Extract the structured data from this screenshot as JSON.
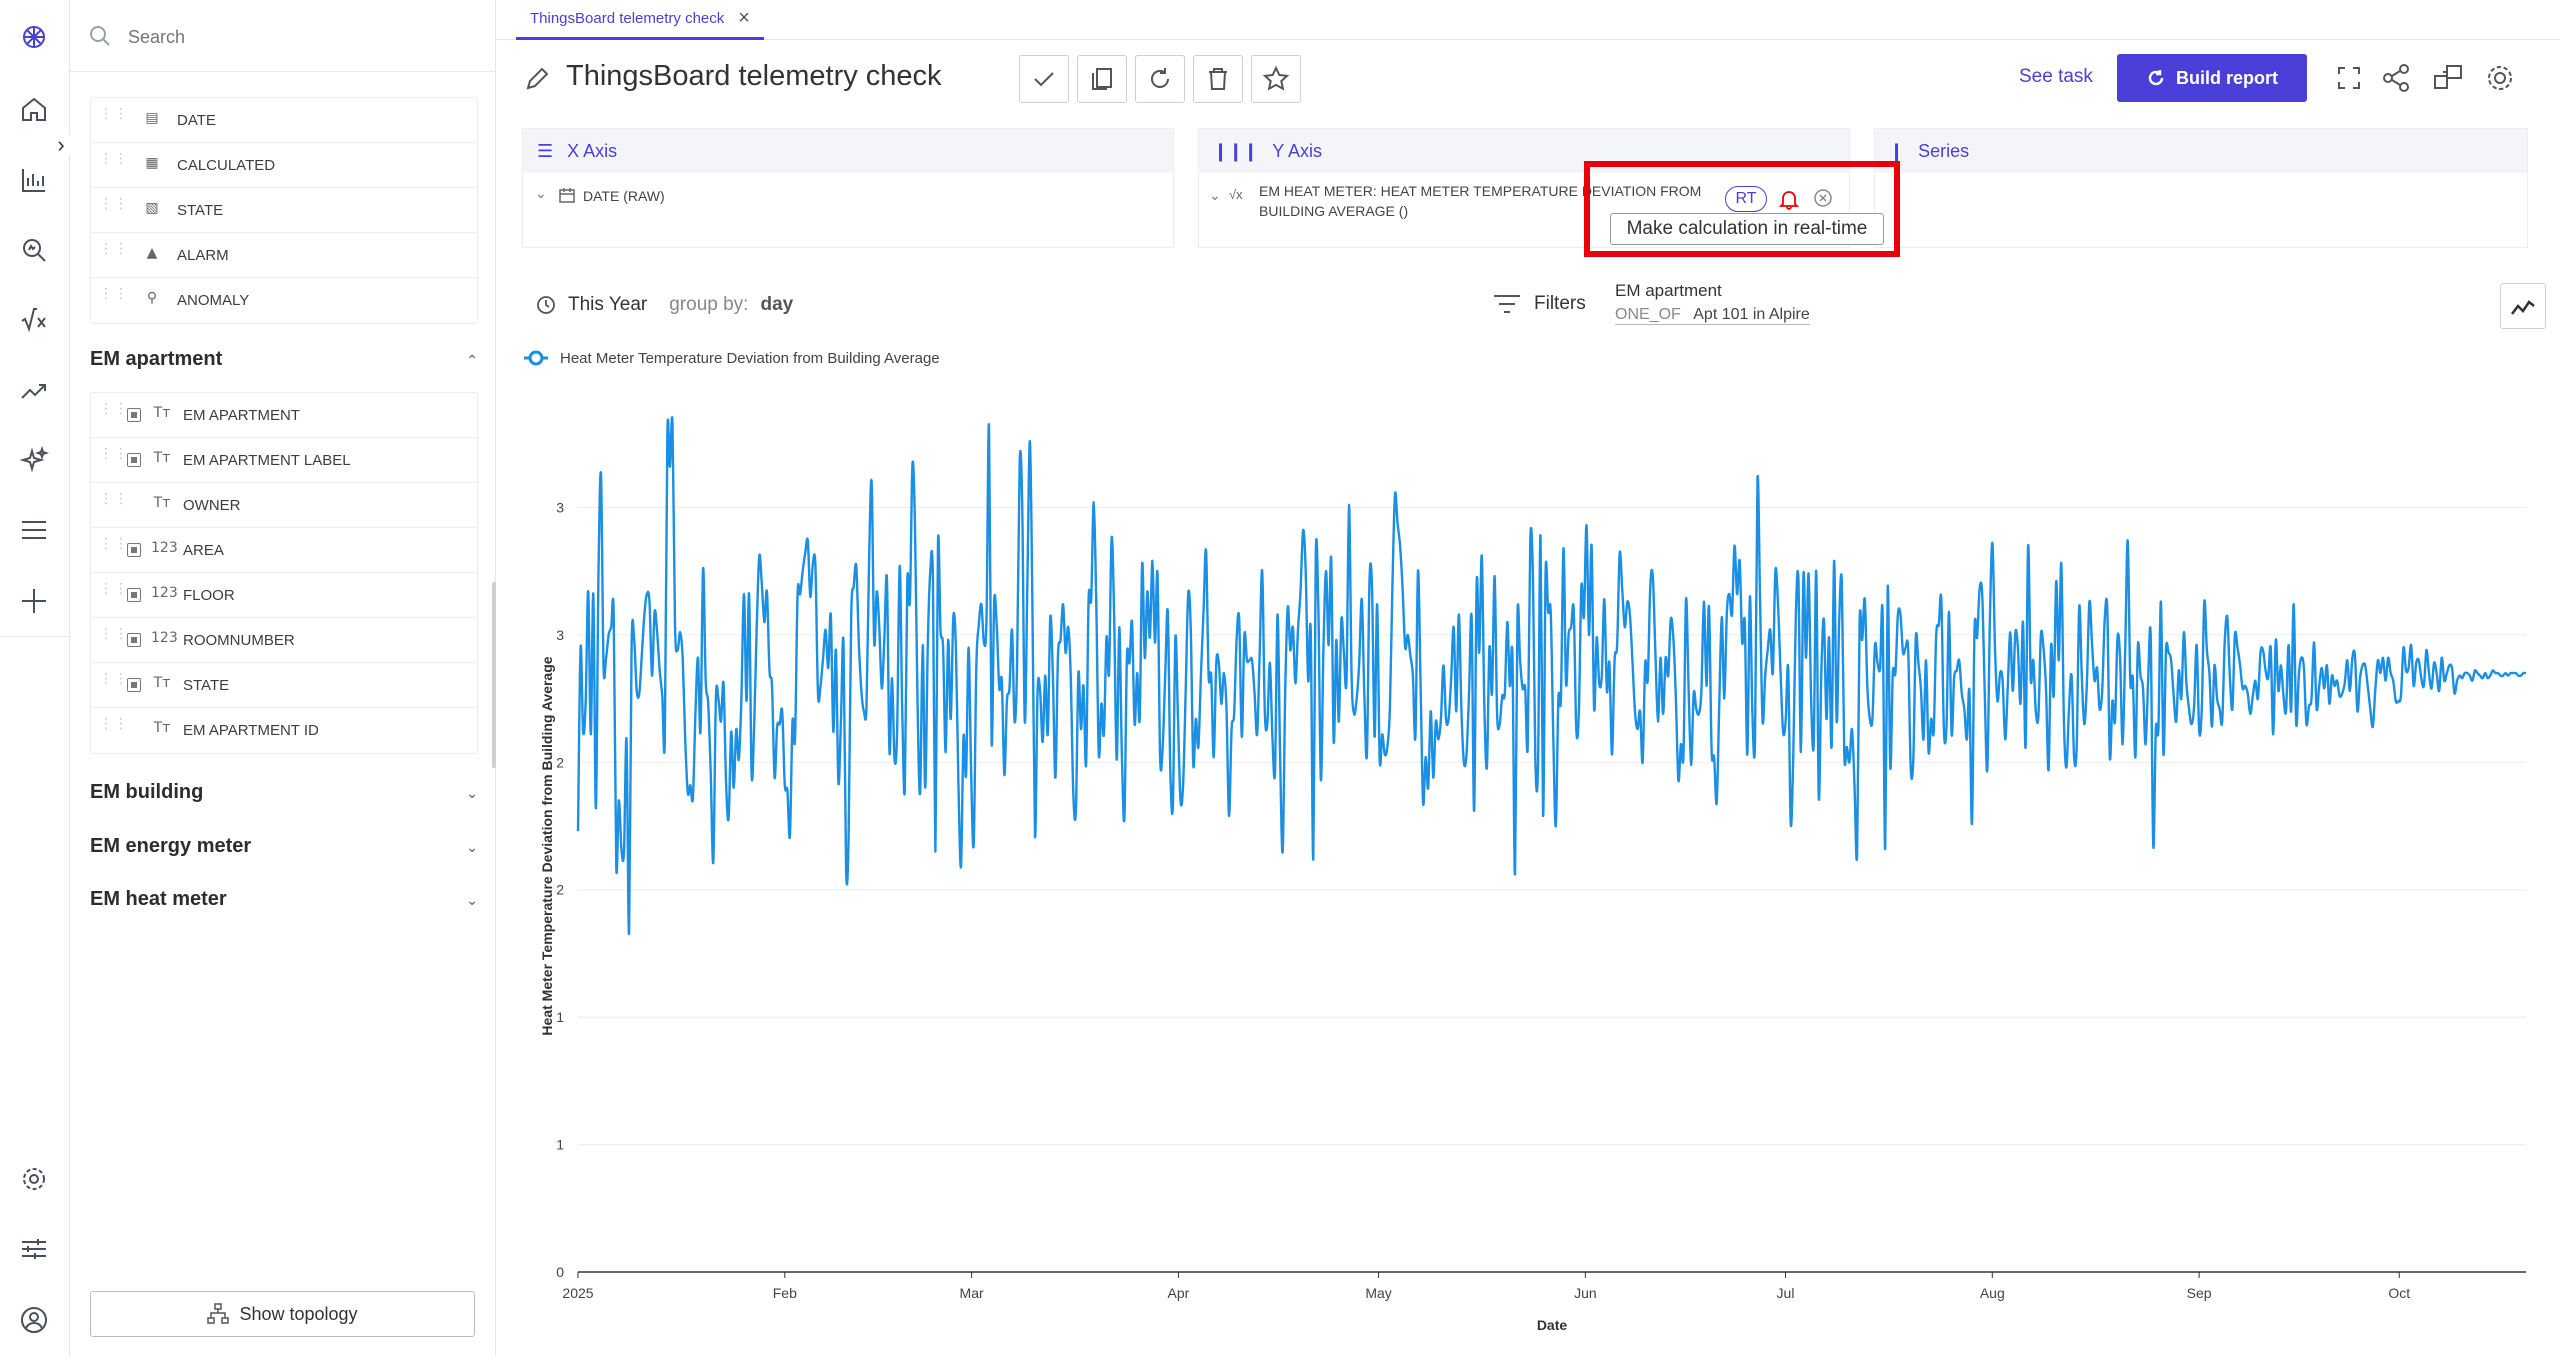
{
  "rail": {
    "icons": [
      "logo-icon",
      "home-icon",
      "reports-icon",
      "explore-icon",
      "formula-icon",
      "trend-icon",
      "ai-sparkle-icon",
      "menu-icon",
      "add-icon",
      "settings-icon",
      "sliders-icon",
      "user-icon"
    ]
  },
  "sidebar": {
    "search_placeholder": "Search",
    "top_fields": [
      {
        "label": "DATE",
        "icon": "calendar-icon"
      },
      {
        "label": "CALCULATED",
        "icon": "calculator-icon"
      },
      {
        "label": "STATE",
        "icon": "state-icon"
      },
      {
        "label": "ALARM",
        "icon": "alarm-icon"
      },
      {
        "label": "ANOMALY",
        "icon": "anomaly-icon"
      }
    ],
    "section_em_apartment": "EM apartment",
    "apartment_fields": [
      {
        "label": "EM APARTMENT",
        "type": "Tт",
        "checked": true
      },
      {
        "label": "EM APARTMENT LABEL",
        "type": "Tт",
        "checked": true
      },
      {
        "label": "OWNER",
        "type": "Tт",
        "checked": false
      },
      {
        "label": "AREA",
        "type": "123",
        "checked": true
      },
      {
        "label": "FLOOR",
        "type": "123",
        "checked": true
      },
      {
        "label": "ROOMNUMBER",
        "type": "123",
        "checked": true
      },
      {
        "label": "STATE",
        "type": "Tт",
        "checked": true
      },
      {
        "label": "EM APARTMENT ID",
        "type": "Tт",
        "checked": false
      }
    ],
    "section_em_building": "EM building",
    "section_em_energy_meter": "EM energy meter",
    "section_em_heat_meter": "EM heat meter",
    "show_topology": "Show topology"
  },
  "tab": {
    "label": "ThingsBoard telemetry check"
  },
  "header": {
    "title": "ThingsBoard telemetry check",
    "see_task": "See task",
    "build_report": "Build report"
  },
  "x_axis": {
    "title": "X Axis",
    "field": "DATE (RAW)"
  },
  "y_axis": {
    "title": "Y Axis",
    "field_line1": "EM HEAT METER: HEAT METER TEMPERATURE DEVIATION FROM",
    "field_line2": "BUILDING AVERAGE ()",
    "rt": "RT",
    "tooltip": "Make calculation in real-time"
  },
  "series_panel": {
    "title": "Series"
  },
  "period": {
    "label": "This Year",
    "group_by_label": "group by:",
    "group_by_value": "day"
  },
  "filters": {
    "label": "Filters",
    "entity": "EM apartment",
    "operator": "ONE_OF",
    "value": "Apt 101 in Alpire"
  },
  "colors": {
    "accent": "#4a3fd8",
    "line": "#1a8fe3",
    "highlight": "#e8000b"
  },
  "chart_data": {
    "type": "line",
    "legend": "Heat Meter Temperature Deviation from Building Average",
    "xlabel": "Date",
    "ylabel": "Heat Meter Temperature Deviation from Building Average",
    "x_ticks": [
      "2025",
      "Feb",
      "Mar",
      "Apr",
      "May",
      "Jun",
      "Jul",
      "Aug",
      "Sep",
      "Oct"
    ],
    "y_ticks": [
      "0",
      "1",
      "1",
      "2",
      "2",
      "3",
      "3"
    ],
    "y_tick_values": [
      0,
      0.5,
      1.0,
      1.5,
      2.0,
      2.5,
      3.0
    ],
    "ylim": [
      0,
      3.5
    ],
    "x_start": "2025-01-01",
    "x_end": "2025-10-20",
    "values": [
      1.73,
      2.45,
      2.12,
      2.24,
      2.67,
      2.11,
      2.66,
      1.82,
      2.72,
      3.13,
      2.38,
      2.41,
      2.5,
      2.53,
      2.58,
      1.59,
      1.85,
      1.66,
      1.65,
      2.09,
      1.33,
      2.46,
      2.48,
      2.28,
      2.27,
      2.42,
      2.58,
      2.66,
      2.63,
      2.34,
      2.59,
      2.51,
      2.36,
      2.26,
      2.09,
      3.29,
      3.16,
      3.33,
      2.54,
      2.44,
      2.51,
      2.41,
      2.09,
      1.88,
      1.91,
      1.86,
      2.19,
      2.41,
      2.12,
      2.76,
      2.32,
      2.23,
      1.95,
      1.61,
      2.25,
      2.25,
      2.16,
      2.31,
      1.92,
      1.78,
      2.12,
      1.9,
      2.13,
      2.01,
      2.25,
      2.66,
      2.24,
      2.66,
      1.95,
      2.15,
      2.53,
      2.81,
      2.7,
      2.55,
      2.67,
      2.36,
      2.3,
      1.94,
      2.14,
      2.15,
      2.2,
      1.91,
      1.89,
      1.71,
      2.16,
      2.09,
      2.66,
      2.66,
      2.75,
      2.82,
      2.87,
      2.65,
      2.78,
      2.77,
      2.27,
      2.3,
      2.41,
      2.52,
      2.37,
      2.58,
      2.12,
      2.44,
      1.92,
      2.17,
      2.47,
      1.58,
      1.71,
      2.57,
      2.69,
      2.77,
      2.47,
      2.28,
      2.2,
      2.22,
      2.79,
      3.1,
      2.47,
      2.67,
      2.53,
      2.29,
      2.49,
      2.72,
      2.04,
      2.33,
      2.01,
      2.12,
      2.77,
      2.21,
      1.89,
      2.71,
      2.63,
      3.17,
      2.92,
      2.22,
      1.88,
      2.46,
      1.9,
      2.46,
      2.75,
      2.73,
      1.65,
      2.86,
      2.52,
      2.45,
      2.04,
      2.48,
      2.17,
      2.57,
      2.45,
      1.92,
      1.59,
      2.1,
      1.95,
      2.45,
      1.95,
      1.68,
      2.37,
      2.54,
      2.62,
      2.47,
      2.56,
      3.32,
      2.08,
      2.63,
      2.54,
      2.29,
      2.32,
      1.95,
      2.24,
      2.29,
      2.52,
      2.16,
      2.39,
      3.18,
      3.01,
      2.16,
      2.69,
      3.26,
      2.62,
      1.71,
      2.28,
      2.28,
      2.08,
      2.34,
      2.11,
      2.57,
      2.34,
      1.94,
      2.42,
      2.48,
      2.62,
      2.43,
      2.53,
      2.34,
      1.88,
      1.81,
      2.35,
      2.13,
      2.3,
      1.99,
      2.64,
      2.64,
      3.02,
      2.62,
      2.03,
      2.23,
      2.11,
      2.49,
      2.35,
      2.88,
      2.58,
      2.01,
      2.53,
      2.04,
      1.78,
      2.41,
      2.39,
      2.55,
      2.15,
      2.35,
      2.17,
      2.78,
      2.41,
      2.67,
      2.49,
      2.79,
      2.47,
      2.74,
      2.02,
      2.06,
      2.34,
      2.59,
      1.97,
      1.83,
      2.49,
      2.17,
      1.85,
      1.91,
      2.27,
      2.66,
      2.53,
      1.99,
      2.17,
      2.06,
      2.35,
      2.59,
      2.83,
      2.34,
      2.34,
      2.02,
      2.39,
      2.39,
      2.23,
      2.35,
      2.21,
      1.79,
      2.13,
      2.19,
      2.49,
      2.56,
      2.1,
      2.5,
      2.4,
      2.4,
      2.4,
      2.27,
      2.11,
      2.43,
      2.75,
      2.2,
      2.15,
      2.39,
      2.1,
      1.96,
      2.58,
      2.03,
      1.65,
      2.28,
      2.61,
      2.44,
      2.53,
      2.31,
      2.52,
      2.67,
      2.91,
      2.76,
      2.32,
      2.52,
      1.62,
      2.82,
      2.6,
      1.93,
      2.46,
      2.75,
      2.46,
      2.8,
      2.08,
      2.48,
      2.16,
      2.56,
      2.43,
      2.32,
      3.01,
      2.34,
      2.19,
      2.25,
      2.39,
      2.64,
      2.27,
      2.03,
      2.71,
      2.69,
      2.1,
      2.62,
      2.01,
      2.11,
      2.03,
      2.06,
      2.21,
      2.69,
      3.05,
      2.94,
      2.85,
      2.68,
      2.45,
      2.5,
      2.42,
      2.34,
      2.1,
      2.75,
      2.32,
      1.84,
      2.02,
      1.9,
      2.2,
      1.94,
      2.16,
      2.09,
      2.17,
      2.38,
      2.17,
      2.17,
      2.33,
      2.53,
      2.2,
      2.58,
      2.21,
      2.0,
      2.03,
      2.27,
      2.57,
      1.81,
      2.71,
      2.43,
      2.81,
      2.23,
      1.98,
      2.45,
      2.27,
      2.73,
      2.19,
      2.15,
      2.26,
      2.27,
      2.55,
      2.3,
      2.42,
      1.56,
      2.58,
      2.4,
      2.29,
      2.29,
      2.06,
      2.87,
      2.74,
      2.0,
      1.98,
      2.89,
      1.79,
      2.75,
      2.59,
      2.59,
      2.1,
      1.75,
      2.25,
      2.25,
      2.84,
      2.31,
      2.5,
      2.53,
      2.6,
      2.13,
      2.19,
      2.69,
      2.57,
      2.93,
      2.5,
      2.85,
      2.21,
      2.49,
      2.31,
      2.34,
      2.64,
      2.28,
      2.39,
      2.03,
      2.4,
      2.46,
      2.82,
      2.68,
      2.53,
      2.63,
      2.58,
      2.4,
      2.2,
      2.13,
      2.2,
      2.0,
      2.39,
      2.32,
      2.69,
      2.73,
      2.43,
      2.16,
      2.41,
      2.19,
      2.41,
      2.34,
      2.56,
      2.49,
      2.26,
      1.93,
      2.07,
      2.03,
      2.64,
      2.29,
      1.99,
      2.27,
      2.21,
      2.19,
      2.28,
      2.63,
      2.3,
      2.61,
      2.05,
      2.02,
      1.84,
      2.22,
      2.57,
      2.25,
      2.59,
      2.66,
      2.58,
      2.85,
      2.66,
      2.79,
      2.47,
      2.55,
      2.03,
      2.65,
      2.19,
      2.08,
      3.11,
      2.63,
      2.16,
      2.34,
      2.44,
      2.52,
      2.35,
      2.75,
      2.63,
      2.36,
      2.12,
      2.16,
      2.37,
      1.76,
      2.03,
      2.57,
      2.72,
      2.04,
      2.74,
      2.41,
      2.74,
      2.25,
      2.07,
      2.75,
      1.86,
      2.35,
      2.56,
      2.17,
      2.49,
      2.06,
      2.79,
      2.16,
      2.56,
      2.71,
      2.03,
      2.06,
      2.0,
      2.13,
      1.91,
      1.64,
      2.55,
      2.48,
      2.64,
      2.3,
      2.17,
      2.17,
      2.46,
      2.39,
      2.37,
      2.59,
      1.66,
      2.69,
      1.98,
      2.35,
      2.35,
      2.58,
      2.58,
      2.43,
      2.45,
      2.44,
      1.98,
      2.01,
      2.49,
      2.39,
      2.29,
      2.09,
      2.4,
      2.04,
      2.17,
      2.12,
      2.5,
      2.54,
      2.64,
      2.13,
      2.14,
      2.59,
      2.11,
      2.33,
      2.36,
      2.4,
      2.27,
      2.21,
      2.09,
      2.28,
      1.76,
      2.52,
      2.49,
      2.68,
      2.66,
      2.28,
      1.97,
      2.56,
      2.86,
      2.45,
      2.24,
      2.35,
      2.32,
      2.09,
      2.29,
      2.51,
      2.28,
      2.51,
      2.45,
      2.23,
      2.55,
      2.06,
      2.85,
      2.33,
      2.4,
      2.2,
      2.18,
      2.5,
      2.45,
      2.29,
      1.97,
      2.46,
      2.26,
      2.71,
      2.4,
      2.78,
      2.17,
      1.98,
      2.21,
      2.34,
      2.02,
      2.06,
      2.61,
      2.34,
      2.15,
      2.31,
      2.63,
      2.47,
      2.32,
      2.37,
      2.21,
      2.28,
      2.56,
      2.6,
      2.02,
      2.24,
      2.16,
      2.49,
      2.41,
      2.07,
      2.44,
      2.87,
      2.32,
      2.33,
      2.02,
      2.46,
      2.34,
      2.29,
      2.07,
      2.32,
      2.5,
      1.67,
      2.13,
      2.13,
      2.63,
      2.03,
      2.44,
      2.43,
      2.4,
      2.26,
      2.16,
      2.36,
      2.25,
      2.51,
      2.31,
      2.21,
      2.15,
      2.22,
      2.46,
      2.12,
      2.21,
      2.63,
      2.44,
      2.35,
      2.14,
      2.38,
      2.25,
      2.21,
      2.16,
      2.47,
      2.57,
      2.34,
      2.21,
      2.5,
      2.45,
      2.38,
      2.29,
      2.3,
      2.27,
      2.19,
      2.26,
      2.32,
      2.25,
      2.43,
      2.44,
      2.36,
      2.33,
      2.45,
      2.11,
      2.48,
      2.28,
      2.38,
      2.26,
      2.2,
      2.46,
      2.2,
      2.62,
      2.15,
      2.34,
      2.41,
      2.37,
      2.15,
      2.22,
      2.25,
      2.47,
      2.21,
      2.3,
      2.37,
      2.29,
      2.38,
      2.23,
      2.34,
      2.3,
      2.32,
      2.26,
      2.27,
      2.31,
      2.4,
      2.28,
      2.41,
      2.42,
      2.2,
      2.33,
      2.38,
      2.38,
      2.3,
      2.21,
      2.14,
      2.29,
      2.4,
      2.35,
      2.41,
      2.32,
      2.41,
      2.35,
      2.32,
      2.24,
      2.24,
      2.26,
      2.45,
      2.36,
      2.37,
      2.46,
      2.3,
      2.39,
      2.4,
      2.33,
      2.3,
      2.44,
      2.35,
      2.29,
      2.39,
      2.35,
      2.28,
      2.41,
      2.32,
      2.35,
      2.38,
      2.37,
      2.27,
      2.32,
      2.34,
      2.33,
      2.35,
      2.35,
      2.34,
      2.32,
      2.36,
      2.35,
      2.34,
      2.33,
      2.35,
      2.33,
      2.34,
      2.36,
      2.35,
      2.35,
      2.34,
      2.34,
      2.35,
      2.34,
      2.35,
      2.35,
      2.35,
      2.34,
      2.34,
      2.35,
      2.35
    ]
  }
}
